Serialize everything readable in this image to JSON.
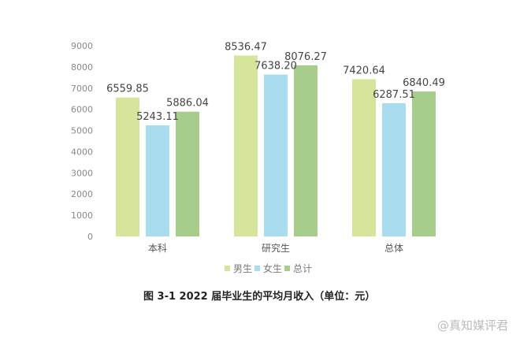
{
  "chart_data": {
    "type": "bar",
    "title": "图 3-1   2022 届毕业生的平均月收入（单位：元）",
    "categories": [
      "本科",
      "研究生",
      "总体"
    ],
    "series": [
      {
        "name": "男生",
        "values": [
          6559.85,
          8536.47,
          7420.64
        ],
        "color": "#d5e59c"
      },
      {
        "name": "女生",
        "values": [
          5243.11,
          7638.2,
          6287.51
        ],
        "color": "#a9dcef"
      },
      {
        "name": "总计",
        "values": [
          5886.04,
          8076.27,
          6840.49
        ],
        "color": "#a6cd8b"
      }
    ],
    "data_labels": [
      [
        "6559.85",
        "8536.47",
        "7420.64"
      ],
      [
        "5243.11",
        "7638.20",
        "6287.51"
      ],
      [
        "5886.04",
        "8076.27",
        "6840.49"
      ]
    ],
    "yticks": [
      "0",
      "1000",
      "2000",
      "3000",
      "4000",
      "5000",
      "6000",
      "7000",
      "8000",
      "9000"
    ],
    "ylim": [
      0,
      9000
    ],
    "xlabel": "",
    "ylabel": "",
    "grid": false,
    "legend_position": "bottom"
  },
  "watermark": "@真知媒评君"
}
